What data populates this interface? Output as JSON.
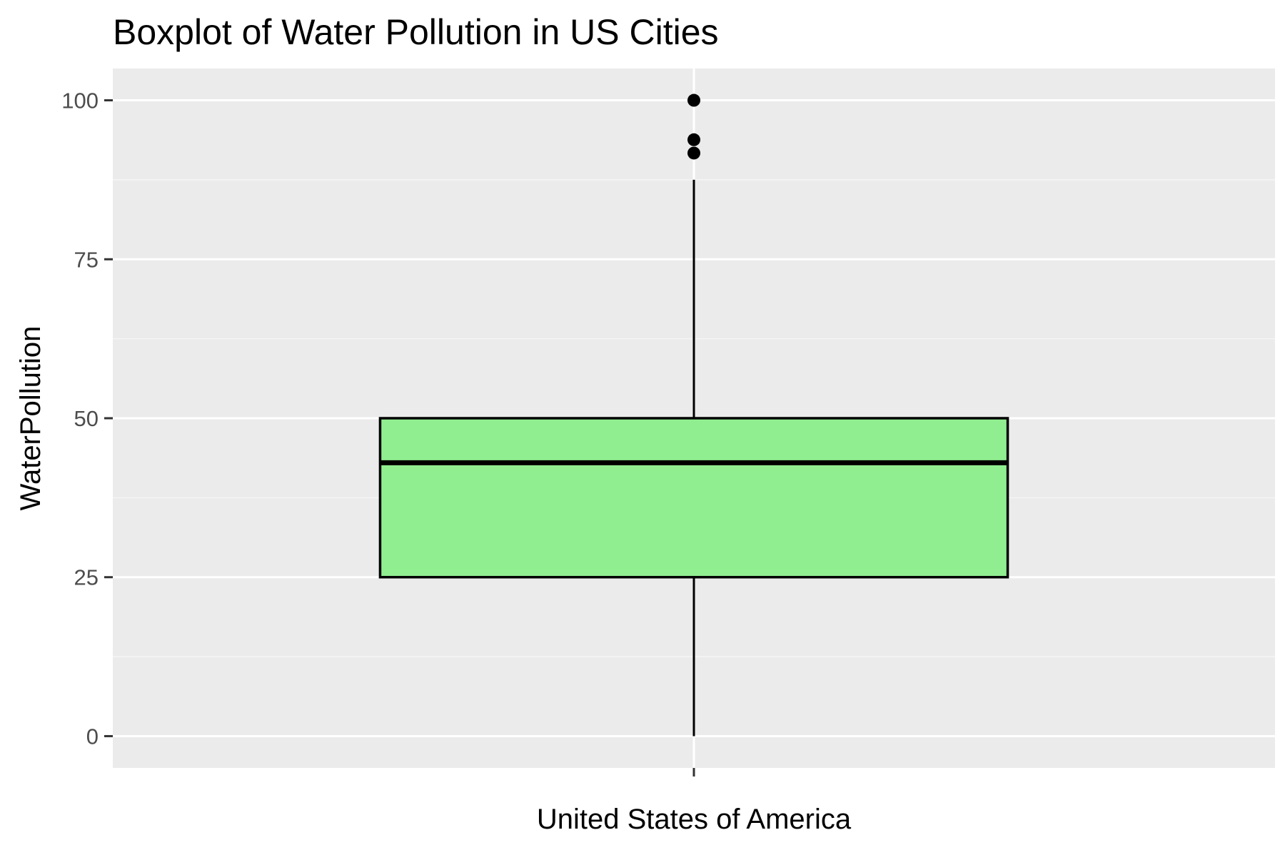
{
  "chart_data": {
    "type": "boxplot",
    "title": "Boxplot of Water Pollution in US Cities",
    "xlabel": "",
    "ylabel": "WaterPollution",
    "categories": [
      "United States of America"
    ],
    "ylim": [
      -5,
      105
    ],
    "yticks": [
      0,
      25,
      50,
      75,
      100
    ],
    "grid": true,
    "legend": "none",
    "boxes": [
      {
        "category": "United States of America",
        "whisker_low": 0,
        "q1": 25,
        "median": 43,
        "q3": 50,
        "whisker_high": 87.5,
        "outliers": [
          91.7,
          93.8,
          100
        ]
      }
    ],
    "colors": {
      "box_fill": "#90ee90",
      "box_line": "#000000",
      "panel_background": "#ebebeb",
      "grid_major": "#ffffff",
      "grid_minor": "#f5f5f5",
      "outlier": "#000000"
    }
  }
}
